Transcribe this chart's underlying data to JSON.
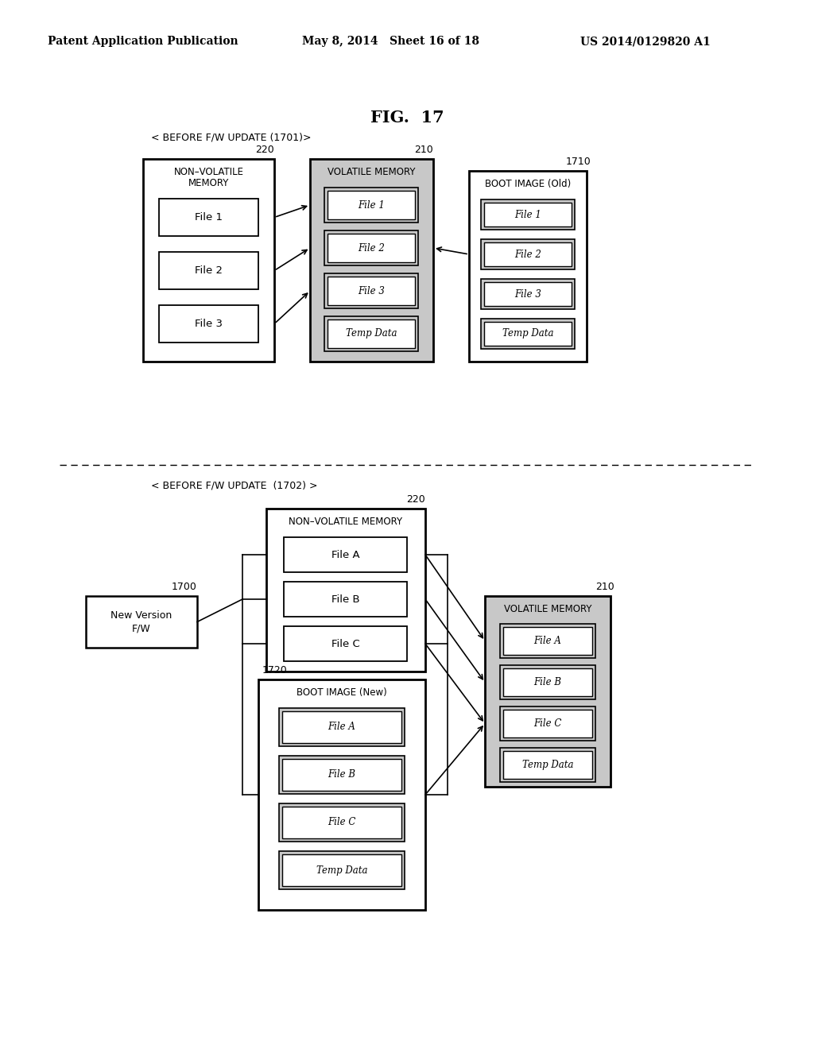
{
  "header_left": "Patent Application Publication",
  "header_mid": "May 8, 2014   Sheet 16 of 18",
  "header_right": "US 2014/0129820 A1",
  "fig_title": "FIG.  17",
  "section1_label": "< BEFORE F/W UPDATE (1701)>",
  "section2_label": "< BEFORE F/W UPDATE  (1702) >",
  "bg_color": "#ffffff",
  "shaded_fill": "#c8c8c8",
  "box_fill": "#ffffff"
}
